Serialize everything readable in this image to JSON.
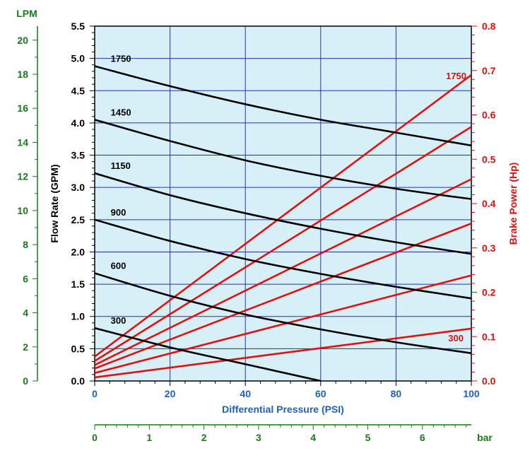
{
  "colors": {
    "background": "#ffffff",
    "plot_fill": "#d7f0f8",
    "grid": "#2233aa",
    "flow_line": "#000000",
    "power_line": "#e01010",
    "lpm_axis": "#1a7a1a",
    "gpm_axis": "#000000",
    "hp_axis": "#e01010",
    "psi_label": "#1f5fbf",
    "bar_axis": "#1a7a1a"
  },
  "chart_data": {
    "type": "line",
    "title": "",
    "xlabel": "Differential Pressure (PSI)",
    "xlim": [
      0,
      100
    ],
    "x_ticks": [
      "0",
      "20",
      "40",
      "60",
      "80",
      "100"
    ],
    "ylabel_left": "Flow Rate (GPM)",
    "ylim_left": [
      0,
      5.5
    ],
    "y_ticks_left": [
      "0.0",
      "0.5",
      "1.0",
      "1.5",
      "2.0",
      "2.5",
      "3.0",
      "3.5",
      "4.0",
      "4.5",
      "5.0",
      "5.5"
    ],
    "ylabel_right": "Brake Power (Hp)",
    "ylim_right": [
      0,
      0.8
    ],
    "y_ticks_right": [
      "0.0",
      "0.1",
      "0.2",
      "0.3",
      "0.4",
      "0.5",
      "0.6",
      "0.7",
      "0.8"
    ],
    "lpm_axis": {
      "label": "LPM",
      "range": [
        0,
        20.82
      ],
      "ticks": [
        "0",
        "2",
        "4",
        "6",
        "8",
        "10",
        "12",
        "14",
        "16",
        "18",
        "20"
      ]
    },
    "bar_axis": {
      "label": "bar",
      "range": [
        0,
        6.895
      ],
      "ticks": [
        "0",
        "1",
        "2",
        "3",
        "4",
        "5",
        "6"
      ]
    },
    "grid": true,
    "flow_series": [
      {
        "name": "1750",
        "x": [
          0,
          20,
          40,
          60,
          80,
          100
        ],
        "y": [
          4.88,
          4.57,
          4.29,
          4.05,
          3.85,
          3.65
        ]
      },
      {
        "name": "1450",
        "x": [
          0,
          20,
          40,
          60,
          80,
          100
        ],
        "y": [
          4.05,
          3.72,
          3.42,
          3.18,
          2.98,
          2.82
        ]
      },
      {
        "name": "1150",
        "x": [
          0,
          20,
          40,
          60,
          80,
          100
        ],
        "y": [
          3.22,
          2.88,
          2.6,
          2.36,
          2.15,
          1.97
        ]
      },
      {
        "name": "900",
        "x": [
          0,
          20,
          40,
          60,
          80,
          100
        ],
        "y": [
          2.5,
          2.17,
          1.89,
          1.66,
          1.46,
          1.28
        ]
      },
      {
        "name": "600",
        "x": [
          0,
          20,
          40,
          60,
          80,
          100
        ],
        "y": [
          1.67,
          1.32,
          1.03,
          0.8,
          0.6,
          0.43
        ]
      },
      {
        "name": "300",
        "x": [
          0,
          20,
          40,
          60
        ],
        "y": [
          0.82,
          0.52,
          0.26,
          0.0
        ]
      }
    ],
    "power_series": [
      {
        "name": "1750",
        "x": [
          0,
          100
        ],
        "y": [
          0.055,
          0.69
        ]
      },
      {
        "name": "",
        "x": [
          0,
          100
        ],
        "y": [
          0.045,
          0.573
        ]
      },
      {
        "name": "",
        "x": [
          0,
          100
        ],
        "y": [
          0.036,
          0.455
        ]
      },
      {
        "name": "",
        "x": [
          0,
          100
        ],
        "y": [
          0.028,
          0.355
        ]
      },
      {
        "name": "",
        "x": [
          0,
          100
        ],
        "y": [
          0.018,
          0.238
        ]
      },
      {
        "name": "300",
        "x": [
          0,
          100
        ],
        "y": [
          0.008,
          0.118
        ]
      }
    ]
  }
}
